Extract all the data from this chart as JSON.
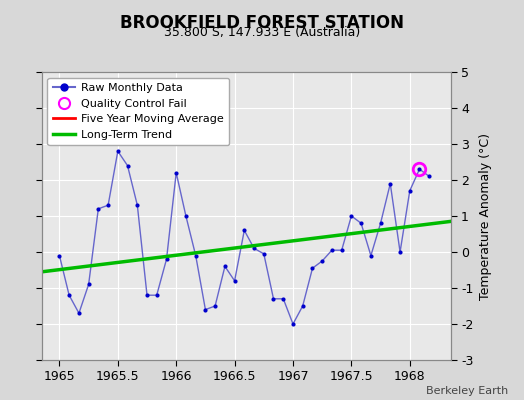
{
  "title": "BROOKFIELD FOREST STATION",
  "subtitle": "35.800 S, 147.933 E (Australia)",
  "ylabel": "Temperature Anomaly (°C)",
  "credit": "Berkeley Earth",
  "xlim": [
    1964.85,
    1968.35
  ],
  "ylim": [
    -3,
    5
  ],
  "yticks": [
    -3,
    -2,
    -1,
    0,
    1,
    2,
    3,
    4,
    5
  ],
  "xticks": [
    1965,
    1965.5,
    1966,
    1966.5,
    1967,
    1967.5,
    1968
  ],
  "xtick_labels": [
    "1965",
    "1965.5",
    "1966",
    "1966.5",
    "1967",
    "1967.5",
    "1968"
  ],
  "bg_color": "#d8d8d8",
  "plot_bg_color": "#e8e8e8",
  "grid_color": "#ffffff",
  "raw_x": [
    1965.0,
    1965.083,
    1965.167,
    1965.25,
    1965.333,
    1965.417,
    1965.5,
    1965.583,
    1965.667,
    1965.75,
    1965.833,
    1965.917,
    1966.0,
    1966.083,
    1966.167,
    1966.25,
    1966.333,
    1966.417,
    1966.5,
    1966.583,
    1966.667,
    1966.75,
    1966.833,
    1966.917,
    1967.0,
    1967.083,
    1967.167,
    1967.25,
    1967.333,
    1967.417,
    1967.5,
    1967.583,
    1967.667,
    1967.75,
    1967.833,
    1967.917,
    1968.0,
    1968.083,
    1968.167
  ],
  "raw_y": [
    -0.1,
    -1.2,
    -1.7,
    -0.9,
    1.2,
    1.3,
    2.8,
    2.4,
    1.3,
    -1.2,
    -1.2,
    -0.2,
    2.2,
    1.0,
    -0.1,
    -1.6,
    -1.5,
    -0.4,
    -0.8,
    0.6,
    0.1,
    -0.05,
    -1.3,
    -1.3,
    -2.0,
    -1.5,
    -0.45,
    -0.25,
    0.05,
    0.05,
    1.0,
    0.8,
    -0.1,
    0.8,
    1.9,
    0.0,
    1.7,
    2.3,
    2.1
  ],
  "qc_fail_x": [
    1968.083
  ],
  "qc_fail_y": [
    2.3
  ],
  "trend_x": [
    1964.85,
    1968.35
  ],
  "trend_y": [
    -0.55,
    0.85
  ],
  "raw_color": "#0000cc",
  "raw_line_color": "#6666cc",
  "trend_color": "#00bb00",
  "ma_color": "#ff0000",
  "qc_color": "#ff00ff"
}
